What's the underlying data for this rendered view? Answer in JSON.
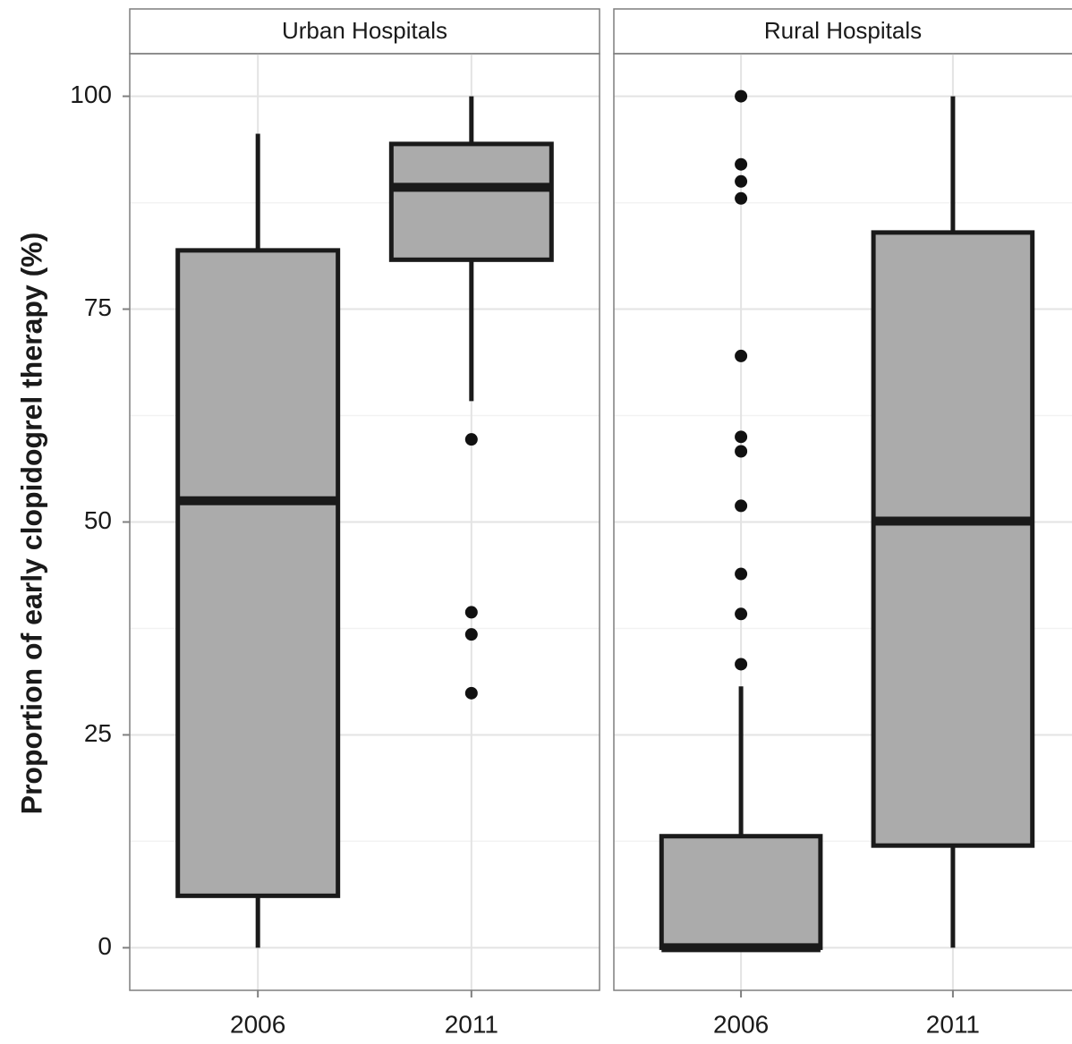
{
  "chart_data": {
    "type": "box",
    "y_label": "Proportion of early clopidogrel therapy (%)",
    "ylim": [
      -5,
      105
    ],
    "yticks": [
      0,
      25,
      50,
      75,
      100
    ],
    "grid": true,
    "color": "#ababab",
    "panels": [
      {
        "title": "Urban Hospitals",
        "categories": [
          "2006",
          "2011"
        ],
        "boxes": [
          {
            "min": 0,
            "q1": 6.1,
            "median": 52.5,
            "q3": 81.9,
            "max": 95.6,
            "outliers": []
          },
          {
            "min": 64.2,
            "q1": 80.8,
            "median": 89.3,
            "q3": 94.4,
            "max": 100,
            "outliers": [
              59.7,
              39.4,
              36.8,
              29.9
            ]
          }
        ]
      },
      {
        "title": "Rural Hospitals",
        "categories": [
          "2006",
          "2011"
        ],
        "boxes": [
          {
            "min": 0,
            "q1": 0,
            "median": 0,
            "q3": 13.1,
            "max": 30.7,
            "outliers": [
              100,
              92.0,
              90.0,
              88.0,
              69.5,
              60.0,
              58.3,
              51.9,
              43.9,
              39.2,
              33.3
            ]
          },
          {
            "min": 0,
            "q1": 12.0,
            "median": 50.1,
            "q3": 84.0,
            "max": 100,
            "outliers": []
          }
        ]
      }
    ]
  }
}
